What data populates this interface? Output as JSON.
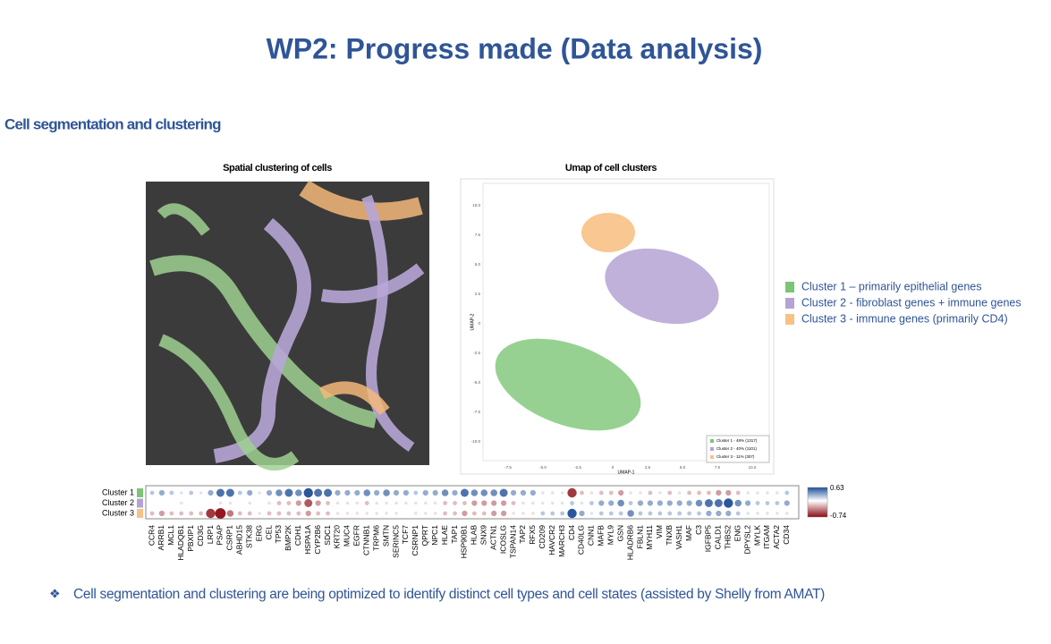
{
  "title": "WP2: Progress made (Data analysis)",
  "section": "Cell segmentation and clustering",
  "spatial": {
    "title": "Spatial clustering of cells"
  },
  "umap": {
    "title": "Umap of cell clusters",
    "x_label": "UMAP-1",
    "y_label": "UMAP-2",
    "x_ticks": [
      "-7.5",
      "-5.0",
      "-2.5",
      "0",
      "2.5",
      "5.0",
      "7.5",
      "10.0"
    ],
    "y_ticks": [
      "10.0",
      "7.5",
      "5.0",
      "2.5",
      "0",
      "-2.5",
      "-5.0",
      "-7.5",
      "-10.0"
    ],
    "legend": [
      "Cluster 1 - 48% (1317)",
      "Cluster 2 - 40% (1101)",
      "Cluster 3 - 11% (307)"
    ]
  },
  "clusters": [
    {
      "label": "Cluster 1 – primarily epithelial genes",
      "color": "#7cc576"
    },
    {
      "label": "Cluster 2 -  fibroblast genes + immune genes",
      "color": "#b4a3d3"
    },
    {
      "label": "Cluster 3 -  immune genes (primarily CD4)",
      "color": "#f8c185"
    }
  ],
  "dotplot": {
    "rows": [
      "Cluster 1",
      "Cluster 2",
      "Cluster 3"
    ],
    "genes": [
      "CCR4",
      "ARRB1",
      "MCL1",
      "HLADQB1",
      "PBXIP1",
      "CD3G",
      "LRP1",
      "PSAP",
      "CSRP1",
      "ABHD15",
      "STK38",
      "ERG",
      "CEL",
      "TP53",
      "BMP2K",
      "CDH1",
      "HSPA1A",
      "CYP2B6",
      "SDC1",
      "KRT20",
      "MUC4",
      "EGFR",
      "CTNNB1",
      "TRPM6",
      "SMTN",
      "SERINC5",
      "TCF7",
      "CSRNP1",
      "QPRT",
      "NPC1",
      "HLAE",
      "TAP1",
      "HSP90B1",
      "HLAB",
      "SNX9",
      "ACTN1",
      "ICOSLG",
      "TSPAN14",
      "TAP2",
      "RFX5",
      "CD209",
      "HAVCR2",
      "MARCH3",
      "CD4",
      "CD40LG",
      "CNN1",
      "MAFB",
      "MYL9",
      "GSN",
      "HLADRB6",
      "FBLN1",
      "MYH11",
      "VIM",
      "TNXB",
      "VASH1",
      "MAF",
      "C3",
      "IGFBP5",
      "CALD1",
      "THBS2",
      "ENG",
      "DPYSL2",
      "MYLK",
      "ITGAM",
      "ACTA2",
      "CD34"
    ],
    "values": [
      [
        0.2,
        0.3,
        0.2,
        0.1,
        0.2,
        0.1,
        0.3,
        0.5,
        0.5,
        0.2,
        0.3,
        0.1,
        0.3,
        0.4,
        0.5,
        0.4,
        0.6,
        0.5,
        0.5,
        0.3,
        0.3,
        0.3,
        0.4,
        0.3,
        0.4,
        0.3,
        0.3,
        0.2,
        0.3,
        0.3,
        0.4,
        0.3,
        0.5,
        0.4,
        0.4,
        0.4,
        0.5,
        0.3,
        0.3,
        0.3,
        0.1,
        0.1,
        0.1,
        -0.6,
        -0.2,
        -0.1,
        -0.2,
        -0.2,
        -0.3,
        -0.1,
        -0.1,
        -0.2,
        -0.1,
        -0.2,
        -0.1,
        -0.2,
        -0.2,
        -0.2,
        -0.3,
        -0.3,
        -0.2,
        -0.1,
        -0.1,
        0.1,
        0.1,
        0.2
      ],
      [
        0,
        0,
        0,
        -0.1,
        0,
        0,
        0,
        -0.1,
        -0.1,
        0,
        -0.1,
        0,
        -0.1,
        -0.2,
        -0.2,
        -0.3,
        -0.5,
        -0.3,
        -0.2,
        -0.1,
        -0.1,
        -0.1,
        -0.2,
        -0.1,
        -0.1,
        -0.1,
        -0.1,
        -0.1,
        -0.1,
        -0.1,
        -0.2,
        -0.2,
        -0.2,
        -0.3,
        -0.3,
        -0.3,
        -0.3,
        -0.2,
        -0.1,
        -0.1,
        0.1,
        0.1,
        0.1,
        0.2,
        0.1,
        0.2,
        0.3,
        0.3,
        0.4,
        0.2,
        0.3,
        0.3,
        0.3,
        0.3,
        0.3,
        0.3,
        0.4,
        0.5,
        0.5,
        0.6,
        0.4,
        0.3,
        0.2,
        0.2,
        0.2,
        0.3
      ],
      [
        -0.2,
        -0.3,
        -0.2,
        -0.2,
        -0.2,
        -0.2,
        -0.6,
        -0.7,
        -0.4,
        -0.2,
        -0.2,
        -0.1,
        -0.2,
        -0.2,
        -0.2,
        -0.2,
        -0.3,
        -0.2,
        -0.2,
        -0.1,
        -0.1,
        -0.1,
        -0.1,
        -0.1,
        -0.1,
        -0.1,
        0,
        -0.1,
        -0.1,
        -0.1,
        -0.2,
        -0.2,
        -0.3,
        -0.2,
        -0.2,
        -0.3,
        -0.3,
        -0.1,
        -0.1,
        -0.1,
        0.2,
        0.2,
        0.2,
        0.6,
        0.3,
        0.1,
        0.2,
        0.2,
        0.2,
        0.4,
        0.2,
        0.2,
        0.2,
        0.2,
        0.2,
        0.2,
        0.2,
        0.3,
        0.3,
        0.3,
        0.2,
        0.1,
        0.1,
        0.1,
        0.1,
        0.1
      ]
    ],
    "scale": [
      -0.74,
      0.63
    ]
  },
  "bullet": "Cell segmentation and clustering are being optimized to identify distinct cell types and cell states (assisted by Shelly from AMAT)"
}
